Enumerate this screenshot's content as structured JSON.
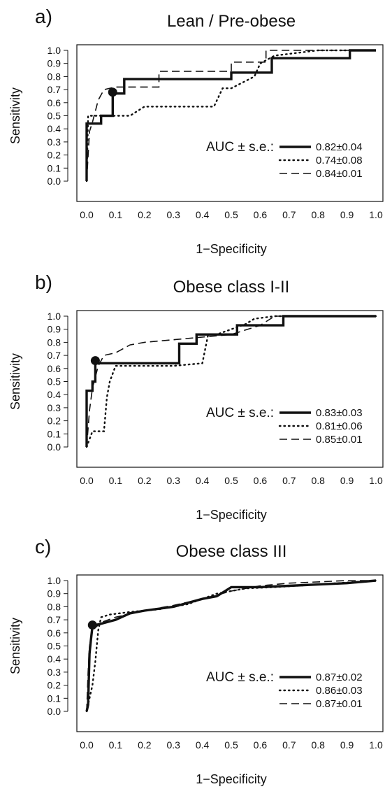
{
  "figure": {
    "panels_ids": [
      "a",
      "b",
      "c"
    ]
  },
  "chart_data": [
    {
      "id": "a",
      "type": "line",
      "panel_label": "a)",
      "title": "Lean / Pre-obese",
      "xlabel": "1−Specificity",
      "ylabel": "Sensitivity",
      "xlim": [
        0,
        1
      ],
      "ylim": [
        0,
        1
      ],
      "xticks": [
        "0.0",
        "0.1",
        "0.2",
        "0.3",
        "0.4",
        "0.5",
        "0.6",
        "0.7",
        "0.8",
        "0.9",
        "1.0"
      ],
      "yticks": [
        "0.0",
        "0.1",
        "0.2",
        "0.3",
        "0.4",
        "0.5",
        "0.6",
        "0.7",
        "0.8",
        "0.9",
        "1.0"
      ],
      "grid": false,
      "legend_position": "right",
      "legend_title": "AUC ± s.e.:",
      "series": [
        {
          "label": "0.82±0.04",
          "style": "solid",
          "x": [
            0,
            0,
            0.05,
            0.05,
            0.09,
            0.09,
            0.13,
            0.13,
            0.5,
            0.5,
            0.64,
            0.64,
            0.91,
            0.91,
            1.0
          ],
          "y": [
            0,
            0.44,
            0.44,
            0.5,
            0.5,
            0.67,
            0.67,
            0.78,
            0.78,
            0.83,
            0.83,
            0.94,
            0.94,
            1.0,
            1.0
          ]
        },
        {
          "label": "0.74±0.08",
          "style": "dotted",
          "x": [
            0,
            0.005,
            0.02,
            0.05,
            0.1,
            0.15,
            0.2,
            0.3,
            0.44,
            0.47,
            0.5,
            0.58,
            0.6,
            0.65,
            0.8,
            1.0
          ],
          "y": [
            0,
            0.5,
            0.5,
            0.5,
            0.5,
            0.5,
            0.57,
            0.57,
            0.57,
            0.71,
            0.71,
            0.8,
            0.9,
            0.96,
            1.0,
            1.0
          ]
        },
        {
          "label": "0.84±0.01",
          "style": "dashed",
          "x": [
            0,
            0.01,
            0.02,
            0.04,
            0.06,
            0.1,
            0.15,
            0.25,
            0.25,
            0.5,
            0.5,
            0.62,
            0.62,
            1.0
          ],
          "y": [
            0,
            0.38,
            0.45,
            0.62,
            0.7,
            0.72,
            0.72,
            0.72,
            0.84,
            0.84,
            0.91,
            0.91,
            1.0,
            1.0
          ]
        }
      ],
      "cutoff_point": {
        "x": 0.09,
        "y": 0.68
      }
    },
    {
      "id": "b",
      "type": "line",
      "panel_label": "b)",
      "title": "Obese class I-II",
      "xlabel": "1−Specificity",
      "ylabel": "Sensitivity",
      "xlim": [
        0,
        1
      ],
      "ylim": [
        0,
        1
      ],
      "xticks": [
        "0.0",
        "0.1",
        "0.2",
        "0.3",
        "0.4",
        "0.5",
        "0.6",
        "0.7",
        "0.8",
        "0.9",
        "1.0"
      ],
      "yticks": [
        "0.0",
        "0.1",
        "0.2",
        "0.3",
        "0.4",
        "0.5",
        "0.6",
        "0.7",
        "0.8",
        "0.9",
        "1.0"
      ],
      "grid": false,
      "legend_position": "right",
      "legend_title": "AUC ± s.e.:",
      "series": [
        {
          "label": "0.83±0.03",
          "style": "solid",
          "x": [
            0,
            0,
            0.02,
            0.02,
            0.03,
            0.03,
            0.32,
            0.32,
            0.38,
            0.38,
            0.52,
            0.52,
            0.58,
            0.58,
            0.68,
            0.68,
            1.0
          ],
          "y": [
            0,
            0.43,
            0.43,
            0.5,
            0.5,
            0.64,
            0.64,
            0.79,
            0.79,
            0.86,
            0.86,
            0.93,
            0.93,
            0.93,
            0.93,
            1.0,
            1.0
          ]
        },
        {
          "label": "0.81±0.06",
          "style": "dotted",
          "x": [
            0,
            0.02,
            0.04,
            0.06,
            0.07,
            0.08,
            0.1,
            0.15,
            0.3,
            0.4,
            0.42,
            0.45,
            0.55,
            0.58,
            0.65,
            1.0
          ],
          "y": [
            0,
            0.12,
            0.12,
            0.12,
            0.38,
            0.5,
            0.62,
            0.62,
            0.62,
            0.64,
            0.86,
            0.86,
            0.94,
            0.98,
            1.0,
            1.0
          ]
        },
        {
          "label": "0.85±0.01",
          "style": "dashed",
          "x": [
            0,
            0.01,
            0.02,
            0.04,
            0.06,
            0.1,
            0.15,
            0.2,
            0.3,
            0.4,
            0.5,
            0.6,
            0.65,
            1.0
          ],
          "y": [
            0,
            0.28,
            0.45,
            0.62,
            0.7,
            0.72,
            0.78,
            0.8,
            0.82,
            0.84,
            0.86,
            0.93,
            1.0,
            1.0
          ]
        }
      ],
      "cutoff_point": {
        "x": 0.03,
        "y": 0.66
      }
    },
    {
      "id": "c",
      "type": "line",
      "panel_label": "c)",
      "title": "Obese class III",
      "xlabel": "1−Specificity",
      "ylabel": "Sensitivity",
      "xlim": [
        0,
        1
      ],
      "ylim": [
        0,
        1
      ],
      "xticks": [
        "0.0",
        "0.1",
        "0.2",
        "0.3",
        "0.4",
        "0.5",
        "0.6",
        "0.7",
        "0.8",
        "0.9",
        "1.0"
      ],
      "yticks": [
        "0.0",
        "0.1",
        "0.2",
        "0.3",
        "0.4",
        "0.5",
        "0.6",
        "0.7",
        "0.8",
        "0.9",
        "1.0"
      ],
      "grid": false,
      "legend_position": "right",
      "legend_title": "AUC ± s.e.:",
      "series": [
        {
          "label": "0.87±0.02",
          "style": "solid",
          "x": [
            0,
            0.005,
            0.01,
            0.015,
            0.02,
            0.03,
            0.05,
            0.1,
            0.15,
            0.2,
            0.3,
            0.4,
            0.45,
            0.5,
            0.6,
            0.7,
            0.8,
            0.9,
            1.0
          ],
          "y": [
            0,
            0.05,
            0.44,
            0.55,
            0.65,
            0.66,
            0.67,
            0.7,
            0.75,
            0.77,
            0.8,
            0.86,
            0.88,
            0.95,
            0.95,
            0.96,
            0.97,
            0.98,
            1.0
          ]
        },
        {
          "label": "0.86±0.03",
          "style": "dotted",
          "x": [
            0,
            0.01,
            0.02,
            0.03,
            0.04,
            0.05,
            0.08,
            0.15,
            0.25,
            0.35,
            0.45,
            0.55,
            0.65,
            0.8,
            1.0
          ],
          "y": [
            0,
            0.1,
            0.2,
            0.38,
            0.62,
            0.72,
            0.74,
            0.76,
            0.78,
            0.82,
            0.9,
            0.94,
            0.95,
            0.97,
            1.0
          ]
        },
        {
          "label": "0.87±0.01",
          "style": "dashed",
          "x": [
            0,
            0.005,
            0.01,
            0.02,
            0.05,
            0.1,
            0.2,
            0.3,
            0.4,
            0.5,
            0.6,
            0.7,
            0.8,
            0.9,
            1.0
          ],
          "y": [
            0,
            0.3,
            0.5,
            0.62,
            0.68,
            0.72,
            0.77,
            0.81,
            0.86,
            0.92,
            0.96,
            0.98,
            0.99,
            1.0,
            1.0
          ]
        }
      ],
      "cutoff_point": {
        "x": 0.02,
        "y": 0.66
      }
    }
  ]
}
